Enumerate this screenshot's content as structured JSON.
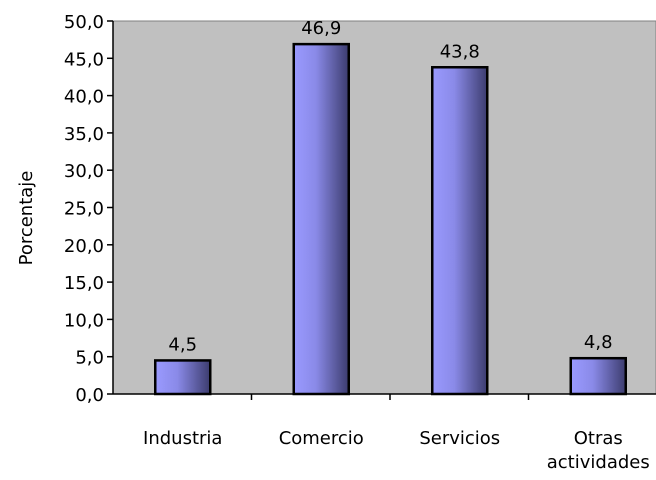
{
  "chart_data": {
    "type": "bar",
    "categories": [
      [
        "Industria"
      ],
      [
        "Comercio"
      ],
      [
        "Servicios"
      ],
      [
        "Otras",
        "actividades"
      ]
    ],
    "values": [
      4.5,
      46.9,
      43.8,
      4.8
    ],
    "value_labels": [
      "4,5",
      "46,9",
      "43,8",
      "4,8"
    ],
    "ylabel": "Porcentaje",
    "xlabel": "",
    "title": "",
    "ylim": [
      0,
      50
    ],
    "yticks": [
      0,
      5,
      10,
      15,
      20,
      25,
      30,
      35,
      40,
      45,
      50
    ],
    "ytick_labels": [
      "0,0",
      "5,0",
      "10,0",
      "15,0",
      "20,0",
      "25,0",
      "30,0",
      "35,0",
      "40,0",
      "45,0",
      "50,0"
    ],
    "grid": false,
    "legend": "none",
    "colors": {
      "plot_background": "#c0c0c0",
      "bar_light": "#9a9aff",
      "bar_dark": "#3c3c6e",
      "bar_outline": "#000000",
      "axis": "#000000"
    }
  }
}
